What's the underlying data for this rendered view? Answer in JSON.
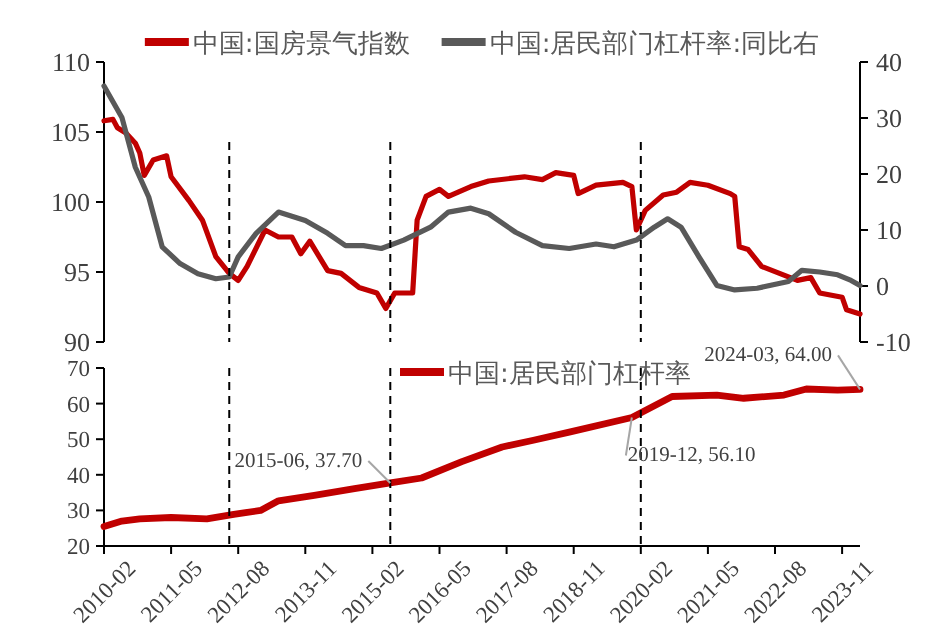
{
  "chart_data": [
    {
      "type": "line",
      "xlim": [
        "2010-02",
        "2024-03"
      ],
      "ylim": [
        90,
        110
      ],
      "yticks": [
        90,
        95,
        100,
        105,
        110
      ],
      "y2lim": [
        -10,
        40
      ],
      "y2ticks": [
        -10,
        0,
        10,
        20,
        30,
        40
      ],
      "tick_labels": "y",
      "legend": "top",
      "series": [
        {
          "name": "中国:国房景气指数",
          "color": "#c00000",
          "x": [
            "2010-02",
            "2010-04",
            "2010-05",
            "2010-07",
            "2010-09",
            "2010-10",
            "2010-11",
            "2011-01",
            "2011-04",
            "2011-05",
            "2011-09",
            "2011-12",
            "2012-03",
            "2012-06",
            "2012-08",
            "2012-10",
            "2013-02",
            "2013-05",
            "2013-08",
            "2013-10",
            "2013-12",
            "2014-04",
            "2014-07",
            "2014-11",
            "2015-03",
            "2015-05",
            "2015-07",
            "2015-11",
            "2015-12",
            "2016-02",
            "2016-05",
            "2016-07",
            "2016-12",
            "2017-04",
            "2017-12",
            "2018-04",
            "2018-07",
            "2018-11",
            "2018-12",
            "2019-04",
            "2019-10",
            "2019-12",
            "2020-01",
            "2020-03",
            "2020-07",
            "2020-10",
            "2021-01",
            "2021-05",
            "2021-10",
            "2021-11",
            "2021-12",
            "2022-02",
            "2022-05",
            "2023-01",
            "2023-04",
            "2023-06",
            "2023-11",
            "2023-12",
            "2024-03"
          ],
          "values": [
            105.8,
            105.9,
            105.3,
            104.9,
            104.2,
            103.5,
            101.9,
            103.0,
            103.3,
            101.8,
            100.1,
            98.7,
            96.1,
            94.9,
            94.4,
            95.4,
            98.0,
            97.5,
            97.5,
            96.3,
            97.2,
            95.1,
            94.9,
            93.9,
            93.5,
            92.4,
            93.5,
            93.5,
            98.7,
            100.4,
            100.9,
            100.4,
            101.1,
            101.5,
            101.8,
            101.6,
            102.1,
            101.9,
            100.6,
            101.2,
            101.4,
            101.1,
            98.0,
            99.4,
            100.5,
            100.7,
            101.4,
            101.2,
            100.6,
            100.4,
            96.8,
            96.6,
            95.4,
            94.4,
            94.6,
            93.5,
            93.2,
            92.3,
            92.0
          ]
        },
        {
          "name": "中国:居民部门杠杆率:同比右",
          "color": "#595959",
          "axis": "y2",
          "x": [
            "2010-02",
            "2010-06",
            "2010-09",
            "2010-12",
            "2011-03",
            "2011-07",
            "2011-11",
            "2012-03",
            "2012-06",
            "2012-08",
            "2012-12",
            "2013-05",
            "2013-11",
            "2014-04",
            "2014-08",
            "2014-12",
            "2015-04",
            "2015-09",
            "2016-03",
            "2016-07",
            "2016-12",
            "2017-04",
            "2017-10",
            "2018-04",
            "2018-10",
            "2019-04",
            "2019-08",
            "2020-01",
            "2020-05",
            "2020-08",
            "2020-11",
            "2021-03",
            "2021-07",
            "2021-11",
            "2022-04",
            "2022-11",
            "2023-02",
            "2023-06",
            "2023-10",
            "2024-01",
            "2024-03"
          ],
          "values": [
            35.7,
            30.1,
            21.2,
            15.9,
            7.0,
            4.0,
            2.2,
            1.3,
            1.6,
            5.2,
            9.4,
            13.2,
            11.7,
            9.4,
            7.2,
            7.2,
            6.7,
            8.2,
            10.5,
            13.2,
            13.9,
            12.9,
            9.6,
            7.2,
            6.7,
            7.5,
            7.0,
            8.2,
            10.5,
            12.0,
            10.5,
            5.2,
            0.1,
            -0.7,
            -0.4,
            0.8,
            2.8,
            2.5,
            2.0,
            1.0,
            0.1
          ]
        }
      ],
      "ref_lines": [
        {
          "axis": "x",
          "value": "2012-06",
          "color": "#000000",
          "line_style": "dashed"
        },
        {
          "axis": "x",
          "value": "2015-06",
          "color": "#000000",
          "line_style": "dashed"
        },
        {
          "axis": "x",
          "value": "2020-02",
          "color": "#000000",
          "line_style": "dashed"
        }
      ]
    },
    {
      "type": "line",
      "xlim": [
        "2010-02",
        "2024-03"
      ],
      "ylim": [
        20,
        70
      ],
      "yticks": [
        20,
        30,
        40,
        50,
        60,
        70
      ],
      "legend": "top",
      "xticks": [
        "2010-02",
        "2011-05",
        "2012-08",
        "2013-11",
        "2015-02",
        "2016-05",
        "2017-08",
        "2018-11",
        "2020-02",
        "2021-05",
        "2022-08",
        "2023-11"
      ],
      "series": [
        {
          "name": "中国:居民部门杠杆率",
          "color": "#c00000",
          "x": [
            "2010-02",
            "2010-06",
            "2010-10",
            "2011-05",
            "2012-01",
            "2012-07",
            "2013-01",
            "2013-05",
            "2014-01",
            "2014-10",
            "2015-06",
            "2016-01",
            "2016-10",
            "2017-07",
            "2018-02",
            "2018-10",
            "2019-12",
            "2020-09",
            "2021-07",
            "2022-01",
            "2022-10",
            "2023-03",
            "2023-10",
            "2024-03"
          ],
          "values": [
            25.5,
            27.0,
            27.6,
            28.0,
            27.6,
            28.9,
            30.0,
            32.7,
            34.2,
            36.1,
            37.7,
            39.1,
            43.7,
            47.8,
            49.7,
            52.0,
            56.1,
            62.0,
            62.4,
            61.5,
            62.4,
            64.1,
            63.8,
            64.0
          ]
        }
      ],
      "ref_lines": [
        {
          "axis": "x",
          "value": "2012-06",
          "color": "#000000",
          "line_style": "dashed"
        },
        {
          "axis": "x",
          "value": "2015-06",
          "color": "#000000",
          "line_style": "dashed"
        },
        {
          "axis": "x",
          "value": "2020-02",
          "color": "#000000",
          "line_style": "dashed"
        }
      ],
      "annotations": [
        {
          "text": "2015-06, 37.70",
          "x": "2015-06",
          "y": 37.7
        },
        {
          "text": "2019-12, 56.10",
          "x": "2019-12",
          "y": 56.1
        },
        {
          "text": "2024-03, 64.00",
          "x": "2024-03",
          "y": 64.0
        }
      ]
    }
  ]
}
